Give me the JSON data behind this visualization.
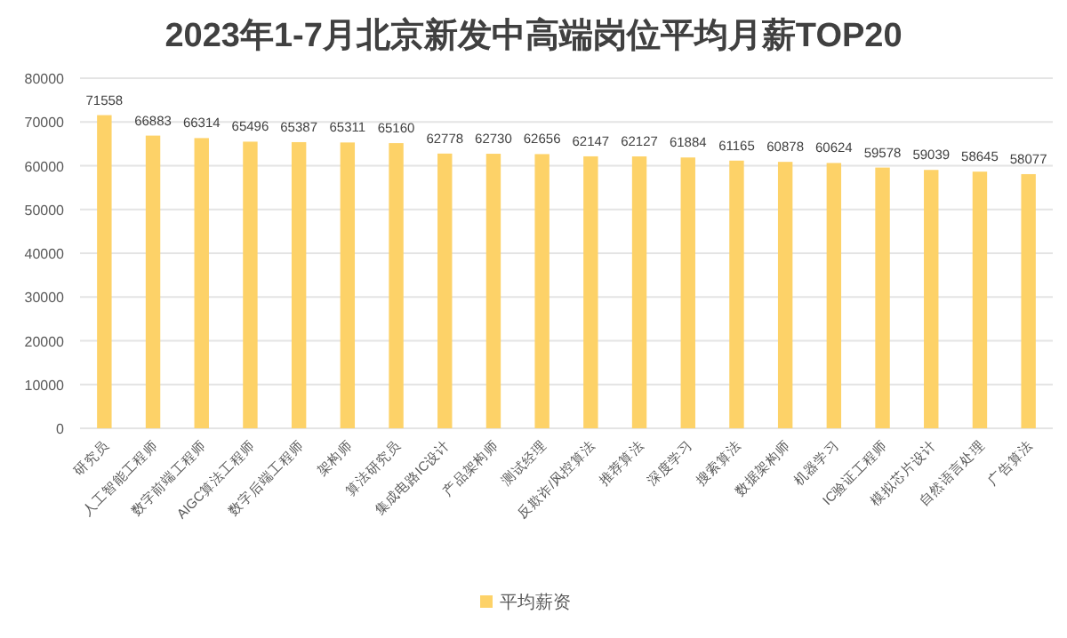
{
  "chart_data": {
    "type": "bar",
    "title": "2023年1-7月北京新发中高端岗位平均月薪TOP20",
    "categories": [
      "研究员",
      "人工智能工程师",
      "数字前端工程师",
      "AIGC算法工程师",
      "数字后端工程师",
      "架构师",
      "算法研究员",
      "集成电路IC设计",
      "产品架构师",
      "测试经理",
      "反欺诈/风控算法",
      "推荐算法",
      "深度学习",
      "搜索算法",
      "数据架构师",
      "机器学习",
      "IC验证工程师",
      "模拟芯片设计",
      "自然语言处理",
      "广告算法"
    ],
    "series": [
      {
        "name": "平均薪资",
        "color": "#fdd268",
        "values": [
          71558,
          66883,
          66314,
          65496,
          65387,
          65311,
          65160,
          62778,
          62730,
          62656,
          62147,
          62127,
          61884,
          61165,
          60878,
          60624,
          59578,
          59039,
          58645,
          58077
        ]
      }
    ],
    "ylim": [
      0,
      80000
    ],
    "yticks": [
      0,
      10000,
      20000,
      30000,
      40000,
      50000,
      60000,
      70000,
      80000
    ],
    "grid": "y",
    "data_labels": true,
    "legend": "bottom"
  }
}
